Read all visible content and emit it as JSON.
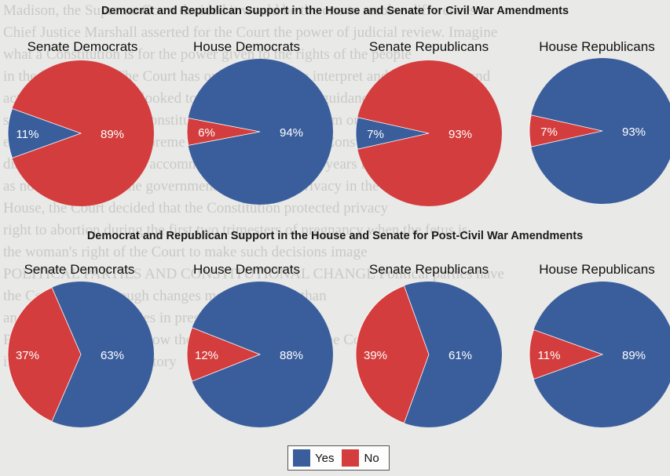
{
  "background_text": [
    "Madison, the Supreme Court decided it would be the one to resolve differences",
    "Chief Justice Marshall asserted for the Court the power of judicial review. Imagine",
    "what a Constitution is for the power given to the rights of the people",
    "in the legislatures. The Court has only the power to interpret and rule on laws and",
    "actions. The Court has looked to the Constitution for guidance in the",
    "states. Interpreting the Constitution, the Court went from one side to the other",
    "example, in 1896 the Supreme Court decided that the Constitution allowed",
    "discrimination in public accommodations. Fifty-eight years later, the Court over-",
    "as not a natural that the government can regulate privacy in the home, and the",
    "House, the Court decided that the Constitution protected privacy",
    "right to abortion during the first two trimesters of pregnancy when the fetus is",
    "the woman's right of the Court to make such decisions image",
    "POLITICAL PARTIES AND CONSTITUTIONAL CHANGE Political parties have",
    "the Constitution through changes more important than",
    "an those related to parties in presidential elections.",
    "Political parties as we know them did not exist when the Constitution was",
    "in the first part of our history"
  ],
  "legend": {
    "yes_label": "Yes",
    "no_label": "No"
  },
  "colors": {
    "yes": "#3a5e9c",
    "no": "#d43d3d"
  },
  "chart_data": [
    {
      "type": "pie",
      "title": "Democrat and Republican Support in the House and Senate for Civil War Amendments",
      "legend": [
        "Yes",
        "No"
      ],
      "charts": [
        {
          "name": "Senate Democrats",
          "slices": [
            {
              "label": "Yes",
              "value": 11
            },
            {
              "label": "No",
              "value": 89
            }
          ]
        },
        {
          "name": "House Democrats",
          "slices": [
            {
              "label": "Yes",
              "value": 94
            },
            {
              "label": "No",
              "value": 6
            }
          ]
        },
        {
          "name": "Senate Republicans",
          "slices": [
            {
              "label": "Yes",
              "value": 7
            },
            {
              "label": "No",
              "value": 93
            }
          ]
        },
        {
          "name": "House Republicans",
          "slices": [
            {
              "label": "Yes",
              "value": 93
            },
            {
              "label": "No",
              "value": 7
            }
          ]
        }
      ]
    },
    {
      "type": "pie",
      "title": "Democrat and Republican Support in the House and Senate for Post-Civil War Amendments",
      "legend": [
        "Yes",
        "No"
      ],
      "charts": [
        {
          "name": "Senate Democrats",
          "slices": [
            {
              "label": "Yes",
              "value": 63
            },
            {
              "label": "No",
              "value": 37
            }
          ]
        },
        {
          "name": "House Democrats",
          "slices": [
            {
              "label": "Yes",
              "value": 88
            },
            {
              "label": "No",
              "value": 12
            }
          ]
        },
        {
          "name": "Senate Republicans",
          "slices": [
            {
              "label": "Yes",
              "value": 61
            },
            {
              "label": "No",
              "value": 39
            }
          ]
        },
        {
          "name": "House Republicans",
          "slices": [
            {
              "label": "Yes",
              "value": 89
            },
            {
              "label": "No",
              "value": 11
            }
          ]
        }
      ]
    }
  ]
}
